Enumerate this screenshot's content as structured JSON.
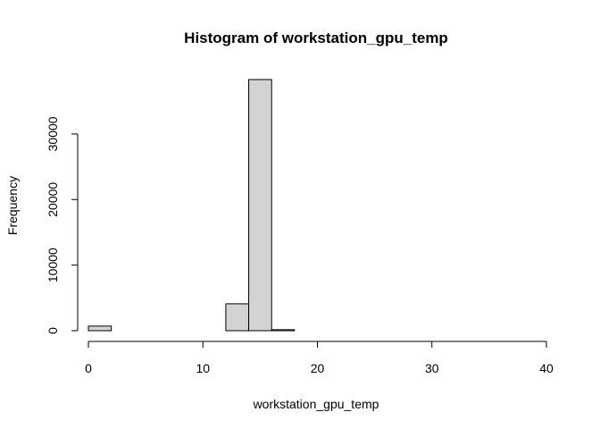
{
  "chart_data": {
    "type": "bar",
    "title": "Histogram of workstation_gpu_temp",
    "xlabel": "workstation_gpu_temp",
    "ylabel": "Frequency",
    "bin_width": 2,
    "bins": [
      {
        "x_start": 0,
        "x_end": 2,
        "count": 700
      },
      {
        "x_start": 2,
        "x_end": 4,
        "count": 0
      },
      {
        "x_start": 4,
        "x_end": 6,
        "count": 0
      },
      {
        "x_start": 6,
        "x_end": 8,
        "count": 0
      },
      {
        "x_start": 8,
        "x_end": 10,
        "count": 0
      },
      {
        "x_start": 10,
        "x_end": 12,
        "count": 0
      },
      {
        "x_start": 12,
        "x_end": 14,
        "count": 4100
      },
      {
        "x_start": 14,
        "x_end": 16,
        "count": 38300
      },
      {
        "x_start": 16,
        "x_end": 18,
        "count": 150
      },
      {
        "x_start": 18,
        "x_end": 20,
        "count": 0
      },
      {
        "x_start": 20,
        "x_end": 22,
        "count": 0
      },
      {
        "x_start": 22,
        "x_end": 24,
        "count": 0
      },
      {
        "x_start": 24,
        "x_end": 26,
        "count": 0
      },
      {
        "x_start": 26,
        "x_end": 28,
        "count": 0
      },
      {
        "x_start": 28,
        "x_end": 30,
        "count": 0
      },
      {
        "x_start": 30,
        "x_end": 32,
        "count": 0
      },
      {
        "x_start": 32,
        "x_end": 34,
        "count": 0
      },
      {
        "x_start": 34,
        "x_end": 36,
        "count": 0
      },
      {
        "x_start": 36,
        "x_end": 38,
        "count": 0
      },
      {
        "x_start": 38,
        "x_end": 40,
        "count": 0
      }
    ],
    "xlim": [
      0,
      40
    ],
    "ylim": [
      0,
      38300
    ],
    "x_ticks": [
      0,
      10,
      20,
      30,
      40
    ],
    "y_ticks": [
      0,
      10000,
      20000,
      30000
    ],
    "bar_fill": "#d3d3d3",
    "bar_stroke": "#000000",
    "grid": false,
    "legend": "none"
  }
}
